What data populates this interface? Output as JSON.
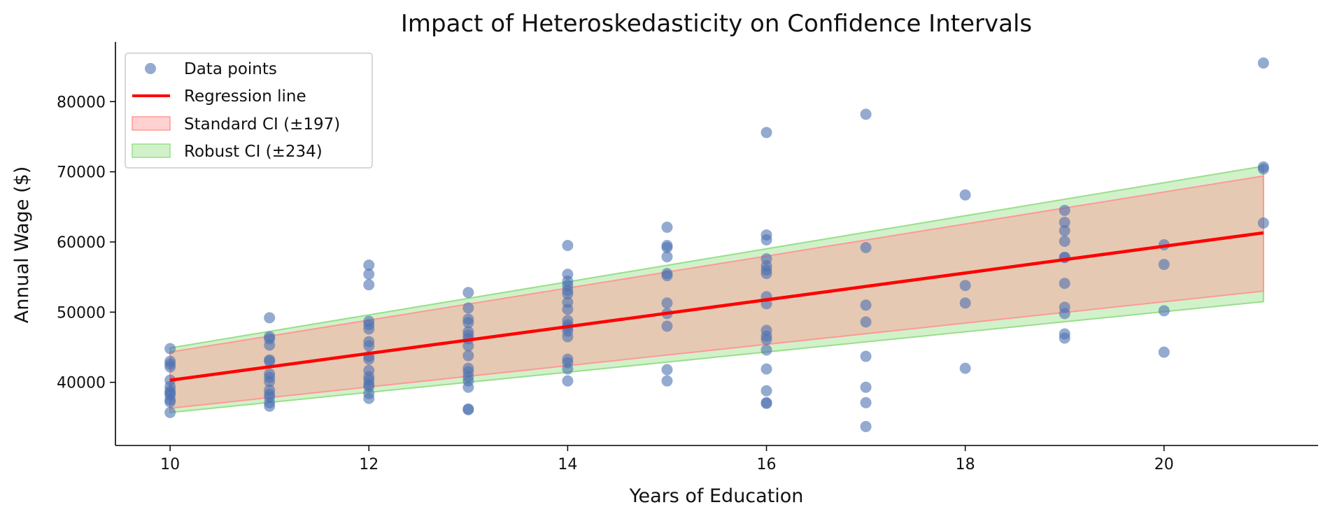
{
  "chart_data": {
    "type": "scatter",
    "title": "Impact of Heteroskedasticity on Confidence Intervals",
    "xlabel": "Years of Education",
    "ylabel": "Annual Wage ($)",
    "xlim": [
      9.45,
      21.55
    ],
    "ylim": [
      31000,
      88500
    ],
    "xticks": [
      10,
      12,
      14,
      16,
      18,
      20
    ],
    "yticks": [
      40000,
      50000,
      60000,
      70000,
      80000
    ],
    "grid": false,
    "legend_position": "top-left",
    "colors": {
      "points": "#4c72b0",
      "regression": "#ff0000",
      "standard_ci": "#ff9896",
      "robust_ci": "#98df8a"
    },
    "legend": [
      {
        "key": "points",
        "label": "Data points"
      },
      {
        "key": "regression",
        "label": "Regression line"
      },
      {
        "key": "standard_ci",
        "label": "Standard CI (±197)"
      },
      {
        "key": "robust_ci",
        "label": "Robust CI (±234)"
      }
    ],
    "regression_line": {
      "x": [
        10,
        21
      ],
      "y": [
        40300,
        61300
      ]
    },
    "standard_ci": {
      "x": [
        10,
        21
      ],
      "lower": [
        36300,
        53000
      ],
      "upper": [
        44300,
        69400
      ]
    },
    "robust_ci": {
      "x": [
        10,
        21
      ],
      "lower": [
        35700,
        51500
      ],
      "upper": [
        44900,
        70800
      ]
    },
    "points": {
      "x": [
        10,
        10,
        10,
        10,
        10,
        10,
        10,
        10,
        10,
        10,
        10,
        10,
        11,
        11,
        11,
        11,
        11,
        11,
        11,
        11,
        11,
        11,
        11,
        11,
        11,
        11,
        12,
        12,
        12,
        12,
        12,
        12,
        12,
        12,
        12,
        12,
        12,
        12,
        12,
        12,
        12,
        12,
        12,
        13,
        13,
        13,
        13,
        13,
        13,
        13,
        13,
        13,
        13,
        13,
        13,
        13,
        13,
        13,
        13,
        14,
        14,
        14,
        14,
        14,
        14,
        14,
        14,
        14,
        14,
        14,
        14,
        14,
        14,
        14,
        14,
        14,
        15,
        15,
        15,
        15,
        15,
        15,
        15,
        15,
        15,
        15,
        15,
        16,
        16,
        16,
        16,
        16,
        16,
        16,
        16,
        16,
        16,
        16,
        16,
        16,
        16,
        16,
        16,
        16,
        17,
        17,
        17,
        17,
        17,
        17,
        17,
        17,
        18,
        18,
        18,
        18,
        19,
        19,
        19,
        19,
        19,
        19,
        19,
        19,
        19,
        19,
        19,
        20,
        20,
        20,
        20,
        21,
        21,
        21,
        21
      ],
      "y": [
        44800,
        43000,
        42600,
        42200,
        40300,
        39400,
        38800,
        38500,
        38200,
        37500,
        37200,
        35700,
        49200,
        46500,
        46200,
        45300,
        43200,
        43000,
        41200,
        40700,
        40100,
        38900,
        38300,
        37900,
        37100,
        36600,
        56700,
        55400,
        53900,
        48700,
        48200,
        47600,
        45800,
        45200,
        43700,
        43300,
        41700,
        40800,
        40300,
        39700,
        39400,
        38400,
        37700,
        52800,
        50600,
        49000,
        48500,
        47200,
        46700,
        46200,
        45200,
        43800,
        42000,
        41500,
        40800,
        40200,
        39300,
        36200,
        36100,
        59500,
        55400,
        54400,
        53800,
        53100,
        52600,
        51400,
        50400,
        48800,
        48200,
        47800,
        47300,
        46500,
        43300,
        42800,
        41900,
        40200,
        62100,
        59500,
        59200,
        57900,
        55500,
        55200,
        51300,
        49800,
        48000,
        41800,
        40200,
        75600,
        61000,
        60300,
        57600,
        56600,
        56000,
        55500,
        52200,
        51200,
        47400,
        46600,
        46100,
        44600,
        41900,
        38800,
        37100,
        37000,
        78200,
        59200,
        51000,
        48600,
        43700,
        39300,
        37100,
        33700,
        66700,
        53800,
        51300,
        42000,
        64500,
        62800,
        61600,
        60100,
        57800,
        54100,
        50700,
        49800,
        46900,
        46300,
        57800,
        59600,
        56800,
        50200,
        44300,
        85500,
        70700,
        70400,
        62700
      ]
    }
  }
}
